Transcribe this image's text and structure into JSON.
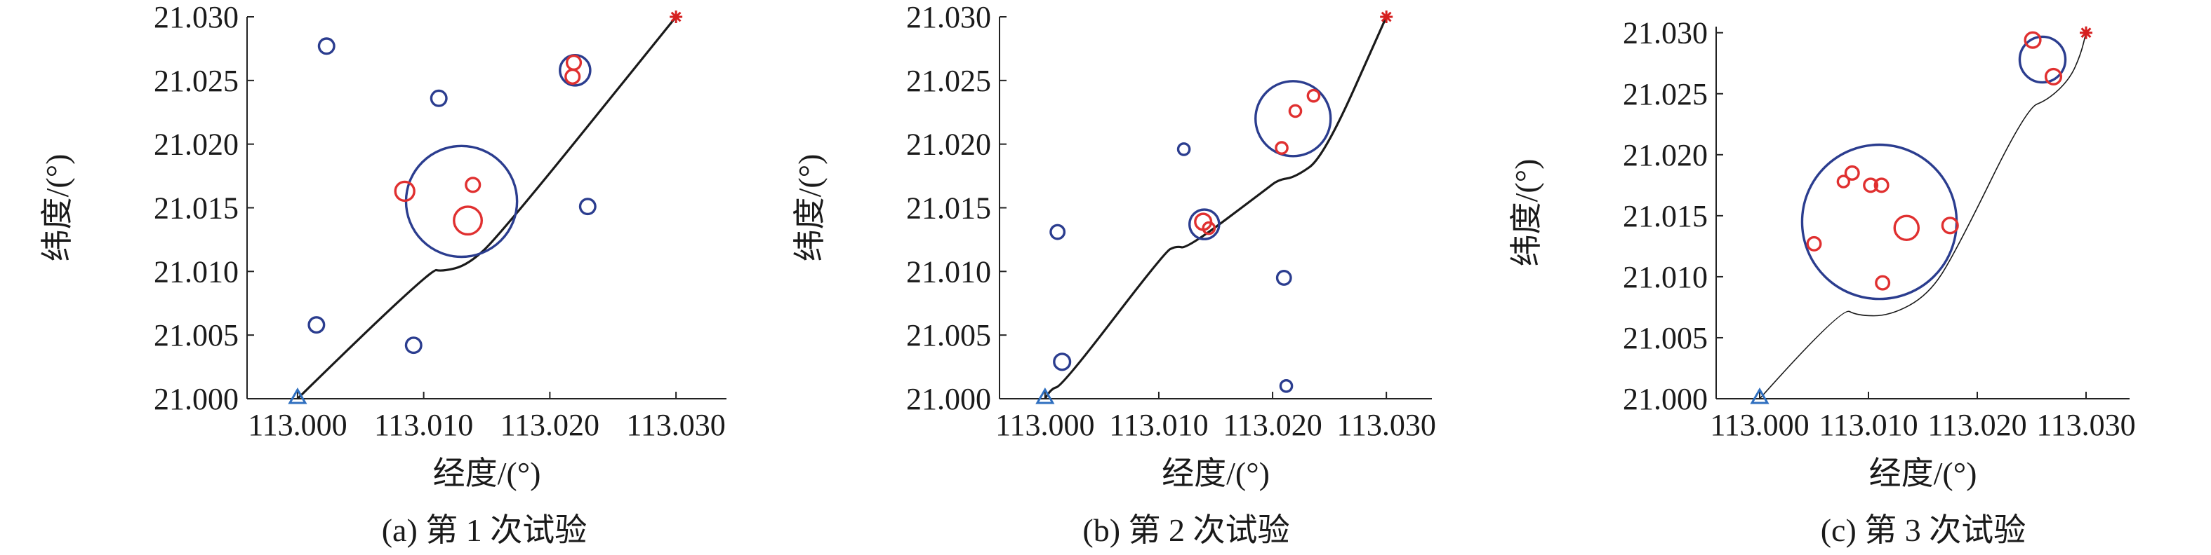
{
  "colors": {
    "path": "#1a1a1a",
    "blue": "#2b3d8f",
    "red": "#e03030",
    "goal": "#d62020",
    "start": "#2f6fbf"
  },
  "chart_data": [
    {
      "type": "scatter",
      "caption": "(a) 第 1 次试验",
      "xlabel": "经度/(°)",
      "ylabel": "纬度/(°)",
      "xticks": [
        "113.000",
        "113.010",
        "113.020",
        "113.030"
      ],
      "yticks": [
        "21.000",
        "21.005",
        "21.010",
        "21.015",
        "21.020",
        "21.025",
        "21.030"
      ],
      "xlim": [
        112.996,
        113.034
      ],
      "ylim": [
        21.0,
        21.03
      ],
      "grid": false,
      "start": {
        "x": 113.0,
        "y": 21.0
      },
      "goal": {
        "x": 113.03,
        "y": 21.03
      },
      "path": [
        [
          113.0,
          21.0
        ],
        [
          113.0105,
          21.0102
        ],
        [
          113.0115,
          21.01
        ],
        [
          113.0135,
          21.0105
        ],
        [
          113.016,
          21.0128
        ],
        [
          113.03,
          21.03
        ]
      ],
      "obstacles": [
        {
          "color": "blue",
          "x": 113.0023,
          "y": 21.0277,
          "r": 0.0006
        },
        {
          "color": "blue",
          "x": 113.0112,
          "y": 21.0236,
          "r": 0.0006
        },
        {
          "color": "blue",
          "x": 113.0015,
          "y": 21.0058,
          "r": 0.0006
        },
        {
          "color": "blue",
          "x": 113.0092,
          "y": 21.0042,
          "r": 0.0006
        },
        {
          "color": "blue",
          "x": 113.023,
          "y": 21.0151,
          "r": 0.0006
        },
        {
          "color": "blue",
          "x": 113.022,
          "y": 21.0258,
          "r": 0.0012
        },
        {
          "color": "blue",
          "x": 113.013,
          "y": 21.0155,
          "r": 0.0044
        },
        {
          "color": "red",
          "x": 113.0219,
          "y": 21.0264,
          "r": 0.00055
        },
        {
          "color": "red",
          "x": 113.0218,
          "y": 21.0253,
          "r": 0.00055
        },
        {
          "color": "red",
          "x": 113.0085,
          "y": 21.0163,
          "r": 0.00075
        },
        {
          "color": "red",
          "x": 113.0139,
          "y": 21.0168,
          "r": 0.00055
        },
        {
          "color": "red",
          "x": 113.0135,
          "y": 21.014,
          "r": 0.0011
        }
      ]
    },
    {
      "type": "scatter",
      "caption": "(b) 第 2 次试验",
      "xlabel": "经度/(°)",
      "ylabel": "纬度/(°)",
      "xticks": [
        "113.000",
        "113.010",
        "113.020",
        "113.030"
      ],
      "yticks": [
        "21.000",
        "21.005",
        "21.010",
        "21.015",
        "21.020",
        "21.025",
        "21.030"
      ],
      "xlim": [
        112.996,
        113.034
      ],
      "ylim": [
        21.0,
        21.03
      ],
      "grid": false,
      "start": {
        "x": 113.0,
        "y": 21.0
      },
      "goal": {
        "x": 113.03,
        "y": 21.03
      },
      "path": [
        [
          113.0,
          21.0
        ],
        [
          113.0005,
          21.0008
        ],
        [
          113.0015,
          21.001
        ],
        [
          113.0105,
          21.0115
        ],
        [
          113.0115,
          21.012
        ],
        [
          113.0125,
          21.0118
        ],
        [
          113.0195,
          21.0165
        ],
        [
          113.0205,
          21.0172
        ],
        [
          113.022,
          21.0174
        ],
        [
          113.0245,
          21.019
        ],
        [
          113.03,
          21.03
        ]
      ],
      "obstacles": [
        {
          "color": "blue",
          "x": 113.0011,
          "y": 21.0131,
          "r": 0.0006
        },
        {
          "color": "blue",
          "x": 113.0015,
          "y": 21.0029,
          "r": 0.0007
        },
        {
          "color": "blue",
          "x": 113.0122,
          "y": 21.0196,
          "r": 0.0005
        },
        {
          "color": "blue",
          "x": 113.021,
          "y": 21.0095,
          "r": 0.0006
        },
        {
          "color": "blue",
          "x": 113.0212,
          "y": 21.001,
          "r": 0.0005
        },
        {
          "color": "blue",
          "x": 113.014,
          "y": 21.0137,
          "r": 0.0013
        },
        {
          "color": "blue",
          "x": 113.0218,
          "y": 21.022,
          "r": 0.0033
        },
        {
          "color": "red",
          "x": 113.0139,
          "y": 21.0139,
          "r": 0.0007
        },
        {
          "color": "red",
          "x": 113.0144,
          "y": 21.0134,
          "r": 0.0005
        },
        {
          "color": "red",
          "x": 113.022,
          "y": 21.0226,
          "r": 0.0005
        },
        {
          "color": "red",
          "x": 113.0236,
          "y": 21.0238,
          "r": 0.0005
        },
        {
          "color": "red",
          "x": 113.0208,
          "y": 21.0197,
          "r": 0.0005
        }
      ]
    },
    {
      "type": "scatter",
      "caption": "(c) 第 3 次试验",
      "xlabel": "经度/(°)",
      "ylabel": "纬度/(°)",
      "xticks": [
        "113.000",
        "113.010",
        "113.020",
        "113.030"
      ],
      "yticks": [
        "21.000",
        "21.005",
        "21.010",
        "21.015",
        "21.020",
        "21.025",
        "21.030"
      ],
      "xlim": [
        112.996,
        113.034
      ],
      "ylim": [
        21.0,
        21.0305
      ],
      "grid": false,
      "start": {
        "x": 113.0,
        "y": 21.0
      },
      "goal": {
        "x": 113.03,
        "y": 21.03
      },
      "path": [
        [
          113.0,
          21.0
        ],
        [
          113.0075,
          21.0075
        ],
        [
          113.009,
          21.0068
        ],
        [
          113.012,
          21.0068
        ],
        [
          113.0155,
          21.0085
        ],
        [
          113.018,
          21.012
        ],
        [
          113.0245,
          21.0238
        ],
        [
          113.0265,
          21.0245
        ],
        [
          113.0285,
          21.0262
        ],
        [
          113.0295,
          21.0282
        ],
        [
          113.03,
          21.03
        ]
      ],
      "obstacles": [
        {
          "color": "blue",
          "x": 113.011,
          "y": 21.0145,
          "r": 0.0071
        },
        {
          "color": "blue",
          "x": 113.026,
          "y": 21.0278,
          "r": 0.0021
        },
        {
          "color": "red",
          "x": 113.005,
          "y": 21.0127,
          "r": 0.0006
        },
        {
          "color": "red",
          "x": 113.0077,
          "y": 21.0178,
          "r": 0.0005
        },
        {
          "color": "red",
          "x": 113.0085,
          "y": 21.0185,
          "r": 0.0006
        },
        {
          "color": "red",
          "x": 113.0102,
          "y": 21.0175,
          "r": 0.0006
        },
        {
          "color": "red",
          "x": 113.0112,
          "y": 21.0175,
          "r": 0.0006
        },
        {
          "color": "red",
          "x": 113.0135,
          "y": 21.014,
          "r": 0.0011
        },
        {
          "color": "red",
          "x": 113.0175,
          "y": 21.0142,
          "r": 0.0007
        },
        {
          "color": "red",
          "x": 113.0113,
          "y": 21.0095,
          "r": 0.0006
        },
        {
          "color": "red",
          "x": 113.0251,
          "y": 21.0294,
          "r": 0.0007
        },
        {
          "color": "red",
          "x": 113.027,
          "y": 21.0264,
          "r": 0.0007
        }
      ]
    }
  ]
}
